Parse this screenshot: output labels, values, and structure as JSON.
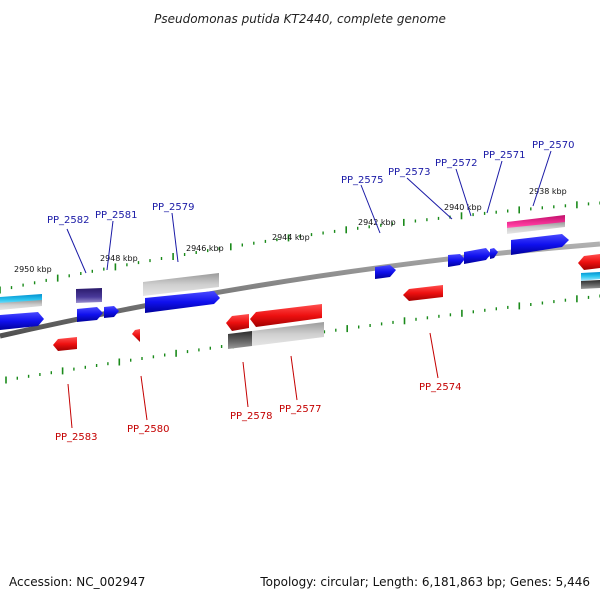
{
  "title": "Pseudomonas putida KT2440, complete genome",
  "footer": {
    "accession": "Accession: NC_002947",
    "summary": "Topology: circular; Length: 6,181,863 bp; Genes: 5,446"
  },
  "position_labels": [
    "2950 kbp",
    "2948 kbp",
    "2946 kbp",
    "2944 kbp",
    "2942 kbp",
    "2940 kbp",
    "2938 kbp"
  ],
  "genes_top": [
    "PP_2582",
    "PP_2581",
    "PP_2579",
    "PP_2575",
    "PP_2573",
    "PP_2572",
    "PP_2571",
    "PP_2570"
  ],
  "genes_bottom": [
    "PP_2583",
    "PP_2580",
    "PP_2578",
    "PP_2577",
    "PP_2574"
  ],
  "colors": {
    "forward_gene": "#0000ee",
    "reverse_gene": "#ee0000",
    "backbone": "#808080",
    "ticks": "#1a8a1a",
    "top_label": "#1a1aa6",
    "bottom_label": "#c40000"
  }
}
